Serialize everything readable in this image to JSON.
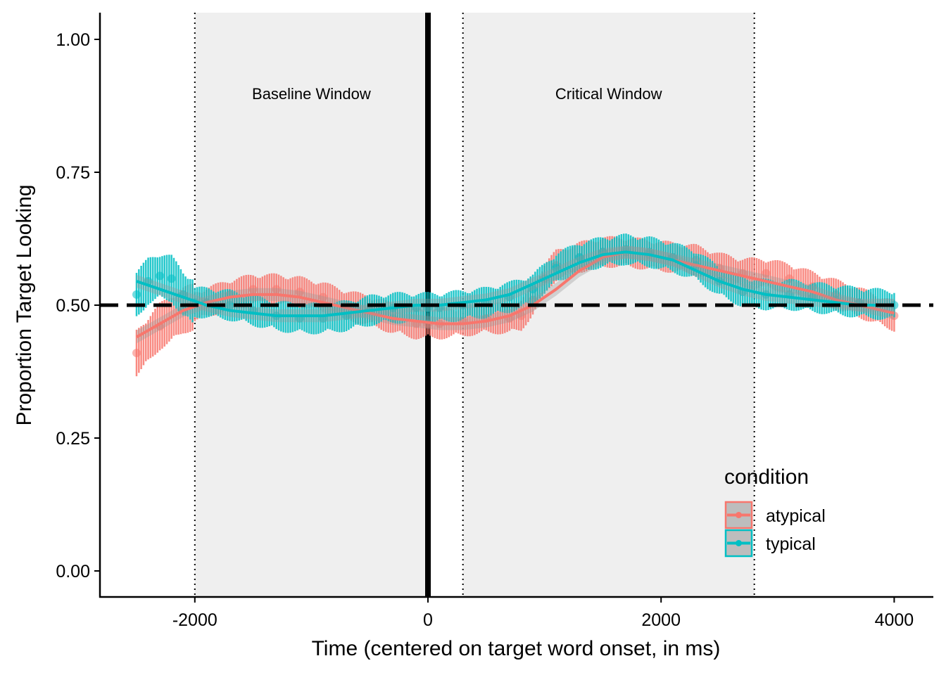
{
  "chart_data": {
    "type": "line",
    "title": "",
    "xlabel": "Time (centered on target word onset, in ms)",
    "ylabel": "Proportion Target Looking",
    "xlim": [
      -2500,
      4000
    ],
    "ylim": [
      0,
      1
    ],
    "x_ticks": [
      -2000,
      0,
      2000,
      4000
    ],
    "x_tick_labels": [
      "-2000",
      "0",
      "2000",
      "4000"
    ],
    "y_ticks": [
      0,
      0.25,
      0.5,
      0.75,
      1
    ],
    "y_tick_labels": [
      "0.00",
      "0.25",
      "0.50",
      "0.75",
      "1.00"
    ],
    "grid": false,
    "reference_lines": {
      "chance_level": 0.5,
      "target_word_onset": 0,
      "window_boundaries": [
        -2000,
        300,
        2800
      ]
    },
    "windows": [
      {
        "label": "Baseline Window",
        "start": -2000,
        "end": 0
      },
      {
        "label": "Critical Window",
        "start": 300,
        "end": 2800
      }
    ],
    "legend": {
      "title": "condition",
      "placement": "bottom-right",
      "entries": [
        "atypical",
        "typical"
      ]
    },
    "colors": {
      "atypical": "#F8766D",
      "typical": "#00BFC4"
    },
    "series": [
      {
        "name": "atypical",
        "x": [
          -2500,
          -2300,
          -2100,
          -1900,
          -1700,
          -1500,
          -1300,
          -1100,
          -900,
          -700,
          -500,
          -300,
          -100,
          0,
          100,
          300,
          500,
          700,
          800,
          900,
          1000,
          1100,
          1300,
          1500,
          1700,
          1900,
          2100,
          2300,
          2500,
          2700,
          2900,
          3100,
          3300,
          3500,
          3700,
          4000
        ],
        "y": [
          0.41,
          0.46,
          0.49,
          0.505,
          0.52,
          0.53,
          0.53,
          0.525,
          0.515,
          0.5,
          0.49,
          0.475,
          0.465,
          0.465,
          0.465,
          0.47,
          0.475,
          0.475,
          0.48,
          0.51,
          0.55,
          0.575,
          0.59,
          0.6,
          0.6,
          0.595,
          0.59,
          0.585,
          0.57,
          0.56,
          0.56,
          0.55,
          0.535,
          0.52,
          0.505,
          0.48
        ]
      },
      {
        "name": "typical",
        "x": [
          -2500,
          -2400,
          -2300,
          -2200,
          -2100,
          -2000,
          -1900,
          -1700,
          -1500,
          -1300,
          -1100,
          -900,
          -700,
          -500,
          -300,
          -100,
          0,
          100,
          300,
          500,
          700,
          900,
          1100,
          1300,
          1500,
          1700,
          1900,
          2100,
          2300,
          2500,
          2700,
          2900,
          3100,
          3300,
          3500,
          3700,
          4000
        ],
        "y": [
          0.52,
          0.545,
          0.555,
          0.55,
          0.52,
          0.505,
          0.505,
          0.5,
          0.49,
          0.48,
          0.475,
          0.475,
          0.48,
          0.49,
          0.495,
          0.495,
          0.495,
          0.495,
          0.5,
          0.505,
          0.515,
          0.53,
          0.57,
          0.59,
          0.6,
          0.605,
          0.6,
          0.59,
          0.575,
          0.545,
          0.525,
          0.52,
          0.52,
          0.515,
          0.51,
          0.505,
          0.5
        ]
      }
    ],
    "smooth_series": [
      {
        "name": "atypical",
        "x": [
          -2500,
          -2300,
          -2100,
          -1900,
          -1700,
          -1500,
          -1300,
          -1100,
          -900,
          -700,
          -500,
          -300,
          -100,
          100,
          300,
          500,
          700,
          900,
          1100,
          1300,
          1500,
          1700,
          1900,
          2100,
          2300,
          2500,
          2700,
          2900,
          3100,
          3300,
          3500,
          3700,
          4000
        ],
        "y": [
          0.44,
          0.465,
          0.49,
          0.505,
          0.515,
          0.52,
          0.52,
          0.515,
          0.505,
          0.495,
          0.485,
          0.475,
          0.47,
          0.465,
          0.465,
          0.47,
          0.48,
          0.5,
          0.53,
          0.565,
          0.59,
          0.6,
          0.595,
          0.585,
          0.575,
          0.565,
          0.555,
          0.545,
          0.535,
          0.525,
          0.51,
          0.5,
          0.485
        ]
      },
      {
        "name": "typical",
        "x": [
          -2500,
          -2300,
          -2100,
          -1900,
          -1700,
          -1500,
          -1300,
          -1100,
          -900,
          -700,
          -500,
          -300,
          -100,
          100,
          300,
          500,
          700,
          900,
          1100,
          1300,
          1500,
          1700,
          1900,
          2100,
          2300,
          2500,
          2700,
          2900,
          3100,
          3300,
          3500,
          3700,
          4000
        ],
        "y": [
          0.545,
          0.53,
          0.515,
          0.5,
          0.49,
          0.485,
          0.48,
          0.48,
          0.48,
          0.485,
          0.49,
          0.495,
          0.5,
          0.5,
          0.505,
          0.51,
          0.52,
          0.54,
          0.56,
          0.58,
          0.595,
          0.6,
          0.595,
          0.585,
          0.565,
          0.545,
          0.53,
          0.52,
          0.515,
          0.51,
          0.505,
          0.5,
          0.5
        ]
      }
    ]
  }
}
